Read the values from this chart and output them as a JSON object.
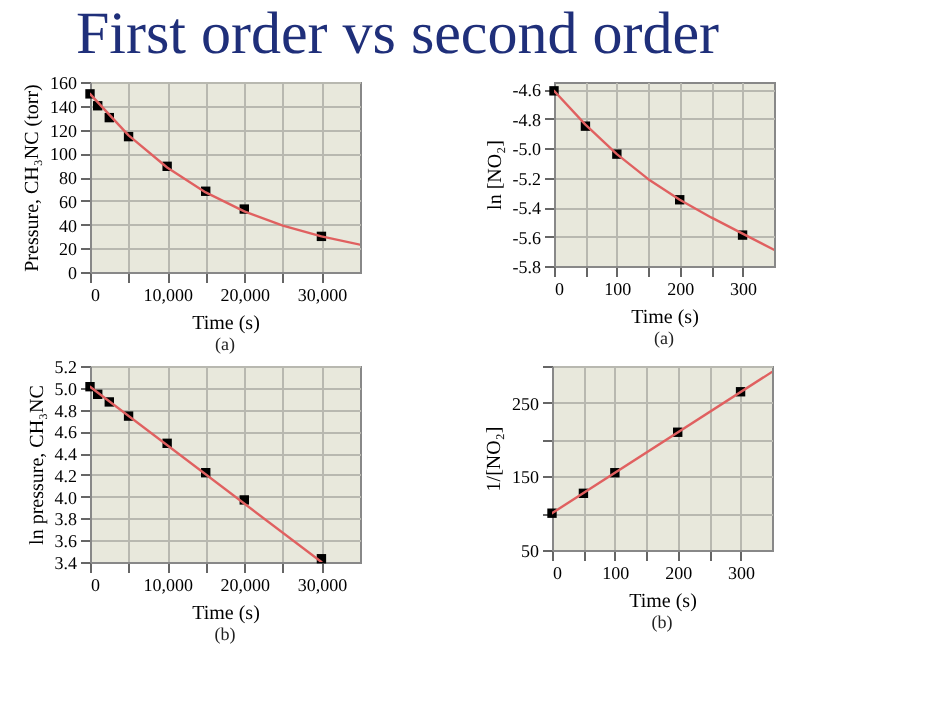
{
  "chart_data": [
    {
      "type": "scatter",
      "title": "First order vs second order",
      "xlabel": "Time (s)",
      "ylabel": "Pressure, CH₃NC (torr)",
      "annotations": [
        "(a)"
      ],
      "marker": "square",
      "grid": true,
      "xlim": [
        0,
        35000
      ],
      "xticks": [
        0,
        {
          "value": 5000,
          "label": null
        },
        {
          "value": 10000,
          "label": "10,000"
        },
        {
          "value": 15000,
          "label": null
        },
        {
          "value": 20000,
          "label": "20,000"
        },
        {
          "value": 25000,
          "label": null
        },
        {
          "value": 30000,
          "label": "30,000"
        }
      ],
      "ylim": [
        0,
        160
      ],
      "yticks": [
        0,
        20,
        40,
        60,
        80,
        100,
        120,
        140,
        160
      ],
      "series": [
        {
          "color": "#000000",
          "x": [
            0,
            1000,
            2500,
            5000,
            10000,
            15000,
            20000,
            30000
          ],
          "values": [
            150,
            140,
            130,
            114,
            89,
            68,
            53,
            30
          ]
        },
        {
          "type": "line",
          "marker": "none",
          "color": "#e06060",
          "x": [
            0,
            5000,
            10000,
            15000,
            20000,
            25000,
            30000,
            35000
          ],
          "values": [
            150,
            115,
            88,
            67,
            51,
            39,
            30,
            23
          ]
        }
      ]
    },
    {
      "type": "scatter",
      "xlabel": "Time (s)",
      "ylabel": "ln [NO₂]",
      "annotations": [
        "(a)"
      ],
      "marker": "square",
      "grid": true,
      "xlim": [
        0,
        350
      ],
      "xticks": [
        0,
        {
          "value": 50,
          "label": null
        },
        100,
        {
          "value": 150,
          "label": null
        },
        200,
        {
          "value": 250,
          "label": null
        },
        300
      ],
      "ylim": [
        -5.8,
        -4.55
      ],
      "yticks": [
        {
          "value": -5.8,
          "label": "-5.8"
        },
        {
          "value": -5.6,
          "label": "-5.6"
        },
        {
          "value": -5.4,
          "label": "-5.4"
        },
        {
          "value": -5.2,
          "label": "-5.2"
        },
        {
          "value": -5.0,
          "label": "-5.0"
        },
        {
          "value": -4.8,
          "label": "-4.8"
        },
        {
          "value": -4.6,
          "label": "-4.6"
        }
      ],
      "series": [
        {
          "color": "#000000",
          "x": [
            0,
            50,
            100,
            200,
            300
          ],
          "values": [
            -4.61,
            -4.85,
            -5.04,
            -5.35,
            -5.59
          ]
        },
        {
          "type": "line",
          "marker": "none",
          "color": "#e06060",
          "x": [
            0,
            50,
            100,
            150,
            200,
            250,
            300,
            350
          ],
          "values": [
            -4.61,
            -4.84,
            -5.04,
            -5.21,
            -5.35,
            -5.47,
            -5.58,
            -5.69
          ]
        }
      ]
    },
    {
      "type": "scatter",
      "xlabel": "Time (s)",
      "ylabel": "ln pressure, CH₃NC",
      "annotations": [
        "(b)"
      ],
      "marker": "square",
      "grid": true,
      "xlim": [
        0,
        35000
      ],
      "xticks": [
        0,
        {
          "value": 5000,
          "label": null
        },
        {
          "value": 10000,
          "label": "10,000"
        },
        {
          "value": 15000,
          "label": null
        },
        {
          "value": 20000,
          "label": "20,000"
        },
        {
          "value": 25000,
          "label": null
        },
        {
          "value": 30000,
          "label": "30,000"
        }
      ],
      "ylim": [
        3.4,
        5.2
      ],
      "yticks": [
        3.4,
        3.6,
        3.8,
        {
          "value": 4.0,
          "label": "4.0"
        },
        4.2,
        4.4,
        4.6,
        4.8,
        {
          "value": 5.0,
          "label": "5.0"
        },
        5.2
      ],
      "series": [
        {
          "color": "#000000",
          "x": [
            0,
            1000,
            2500,
            5000,
            10000,
            15000,
            20000,
            30000
          ],
          "values": [
            5.01,
            4.94,
            4.87,
            4.74,
            4.49,
            4.22,
            3.97,
            3.43
          ]
        },
        {
          "type": "line",
          "marker": "none",
          "color": "#e06060",
          "x": [
            0,
            30000
          ],
          "values": [
            5.01,
            3.4
          ]
        }
      ]
    },
    {
      "type": "scatter",
      "xlabel": "Time (s)",
      "ylabel": "1/[NO₂]",
      "annotations": [
        "(b)"
      ],
      "marker": "square",
      "grid": true,
      "xlim": [
        0,
        350
      ],
      "xticks": [
        0,
        {
          "value": 50,
          "label": null
        },
        100,
        {
          "value": 150,
          "label": null
        },
        200,
        {
          "value": 250,
          "label": null
        },
        300
      ],
      "ylim": [
        50,
        300
      ],
      "yticks": [
        50,
        {
          "value": 100,
          "label": null
        },
        150,
        {
          "value": 200,
          "label": null
        },
        250,
        {
          "value": 300,
          "label": null
        }
      ],
      "series": [
        {
          "color": "#000000",
          "x": [
            0,
            50,
            100,
            200,
            300
          ],
          "values": [
            100,
            127,
            155,
            210,
            265
          ]
        },
        {
          "type": "line",
          "marker": "none",
          "color": "#e06060",
          "x": [
            0,
            350
          ],
          "values": [
            100,
            292
          ]
        }
      ]
    }
  ]
}
